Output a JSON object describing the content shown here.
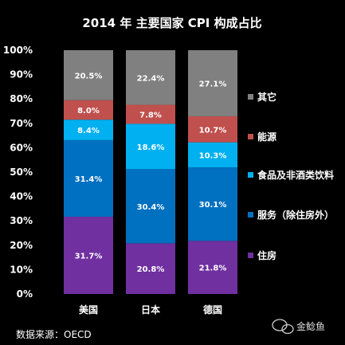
{
  "chart_data": {
    "type": "bar",
    "stacked": true,
    "title": "2014 年  主要国家 CPI 构成占比",
    "categories": [
      "美国",
      "日本",
      "德国"
    ],
    "ylim": [
      0,
      100
    ],
    "y_ticks": [
      "0%",
      "10%",
      "20%",
      "30%",
      "40%",
      "50%",
      "60%",
      "70%",
      "80%",
      "90%",
      "100%"
    ],
    "series": [
      {
        "name": "住房",
        "color": "#7030a0",
        "values": [
          31.7,
          20.8,
          21.8
        ],
        "labels": [
          "31.7%",
          "20.8%",
          "21.8%"
        ]
      },
      {
        "name": "服务（除住房外）",
        "color": "#0070c0",
        "values": [
          31.4,
          30.4,
          30.1
        ],
        "labels": [
          "31.4%",
          "30.4%",
          "30.1%"
        ]
      },
      {
        "name": "食品及非酒类饮料",
        "color": "#00b0f0",
        "values": [
          8.4,
          18.6,
          10.3
        ],
        "labels": [
          "8.4%",
          "18.6%",
          "10.3%"
        ]
      },
      {
        "name": "能源",
        "color": "#c0504d",
        "values": [
          8.0,
          7.8,
          10.7
        ],
        "labels": [
          "8.0%",
          "7.8%",
          "10.7%"
        ]
      },
      {
        "name": "其它",
        "color": "#808080",
        "values": [
          20.5,
          22.4,
          27.1
        ],
        "labels": [
          "20.5%",
          "22.4%",
          "27.1%"
        ]
      }
    ],
    "legend_position": "right",
    "grid": false
  },
  "footer": {
    "source": "数据来源：OECD",
    "watermark": "金鲶鱼"
  }
}
